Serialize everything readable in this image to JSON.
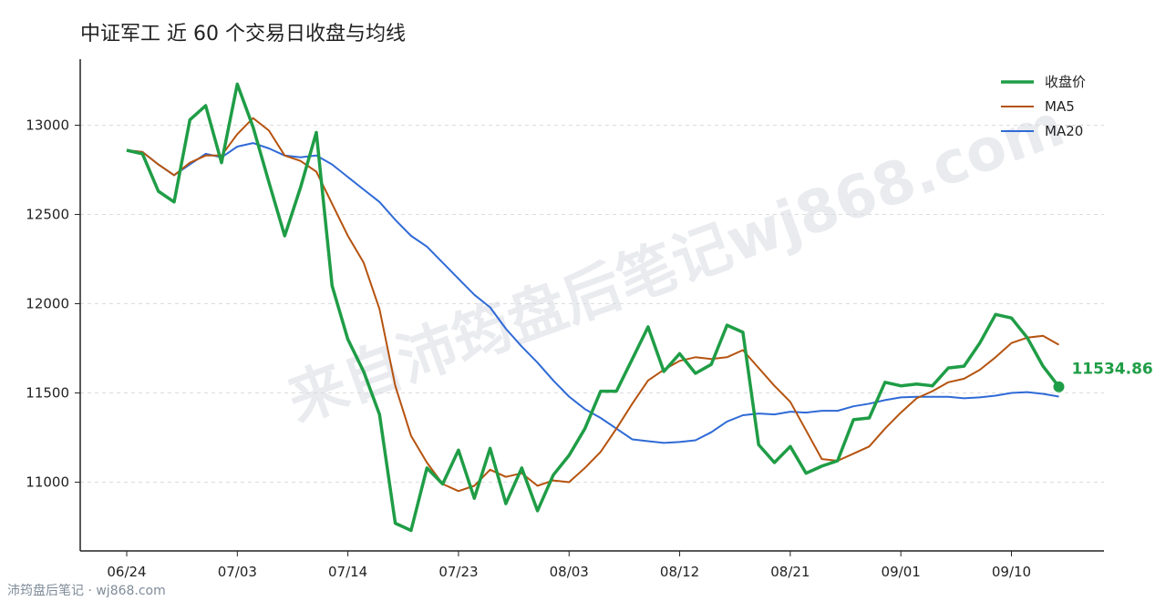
{
  "chart_data": {
    "type": "line",
    "title": "中证军工 近 60 个交易日收盘与均线",
    "x_tick_labels": [
      "06/24",
      "07/03",
      "07/14",
      "07/23",
      "08/03",
      "08/12",
      "08/21",
      "09/01",
      "09/10"
    ],
    "y_tick_labels": [
      "11000",
      "11500",
      "12000",
      "12500",
      "13000"
    ],
    "y_ticks": [
      11000,
      11500,
      12000,
      12500,
      13000
    ],
    "ylim": [
      10615,
      13370
    ],
    "grid": "horizontal dashed",
    "legend_position": "top-right",
    "series": [
      {
        "name": "收盘价",
        "color": "#1f9d46",
        "values": [
          12860,
          12840,
          12630,
          12570,
          13030,
          13110,
          12790,
          13230,
          12990,
          12680,
          12380,
          12650,
          12960,
          12100,
          11800,
          11620,
          11380,
          10770,
          10730,
          11080,
          10990,
          11180,
          10910,
          11190,
          10880,
          11080,
          10840,
          11040,
          11150,
          11300,
          11510,
          11510,
          11690,
          11870,
          11620,
          11720,
          11610,
          11660,
          11880,
          11840,
          11210,
          11110,
          11200,
          11050,
          11090,
          11120,
          11350,
          11360,
          11560,
          11540,
          11550,
          11540,
          11640,
          11650,
          11780,
          11940,
          11920,
          11810,
          11650,
          11534.86
        ]
      },
      {
        "name": "MA5",
        "color": "#b5530f",
        "values": [
          12860,
          12850,
          12780,
          12720,
          12790,
          12830,
          12830,
          12950,
          13040,
          12970,
          12830,
          12800,
          12740,
          12560,
          12380,
          12230,
          11970,
          11540,
          11260,
          11110,
          10990,
          10950,
          10980,
          11070,
          11030,
          11050,
          10980,
          11010,
          11000,
          11080,
          11170,
          11300,
          11440,
          11570,
          11630,
          11680,
          11700,
          11690,
          11700,
          11740,
          11640,
          11540,
          11450,
          11290,
          11130,
          11120,
          11160,
          11200,
          11300,
          11390,
          11470,
          11510,
          11560,
          11580,
          11630,
          11700,
          11780,
          11810,
          11820,
          11770
        ]
      },
      {
        "name": "MA20",
        "color": "#2f6ad6",
        "values": [
          12860,
          12850,
          12780,
          12720,
          12780,
          12840,
          12820,
          12880,
          12900,
          12870,
          12830,
          12820,
          12830,
          12780,
          12710,
          12640,
          12570,
          12470,
          12380,
          12320,
          12230,
          12140,
          12050,
          11980,
          11860,
          11760,
          11670,
          11570,
          11480,
          11410,
          11360,
          11300,
          11240,
          11230,
          11220,
          11225,
          11235,
          11280,
          11340,
          11375,
          11385,
          11380,
          11395,
          11390,
          11400,
          11400,
          11425,
          11440,
          11460,
          11475,
          11478,
          11478,
          11478,
          11470,
          11475,
          11485,
          11500,
          11505,
          11495,
          11480
        ]
      }
    ],
    "last_value_label": "11534.86"
  },
  "legend": {
    "close_label": "收盘价",
    "ma5_label": "MA5",
    "ma20_label": "MA20"
  },
  "watermark": {
    "text": "来自沛筠盘后笔记wj868.com"
  },
  "footer": {
    "text": "沛筠盘后笔记 · wj868.com"
  }
}
